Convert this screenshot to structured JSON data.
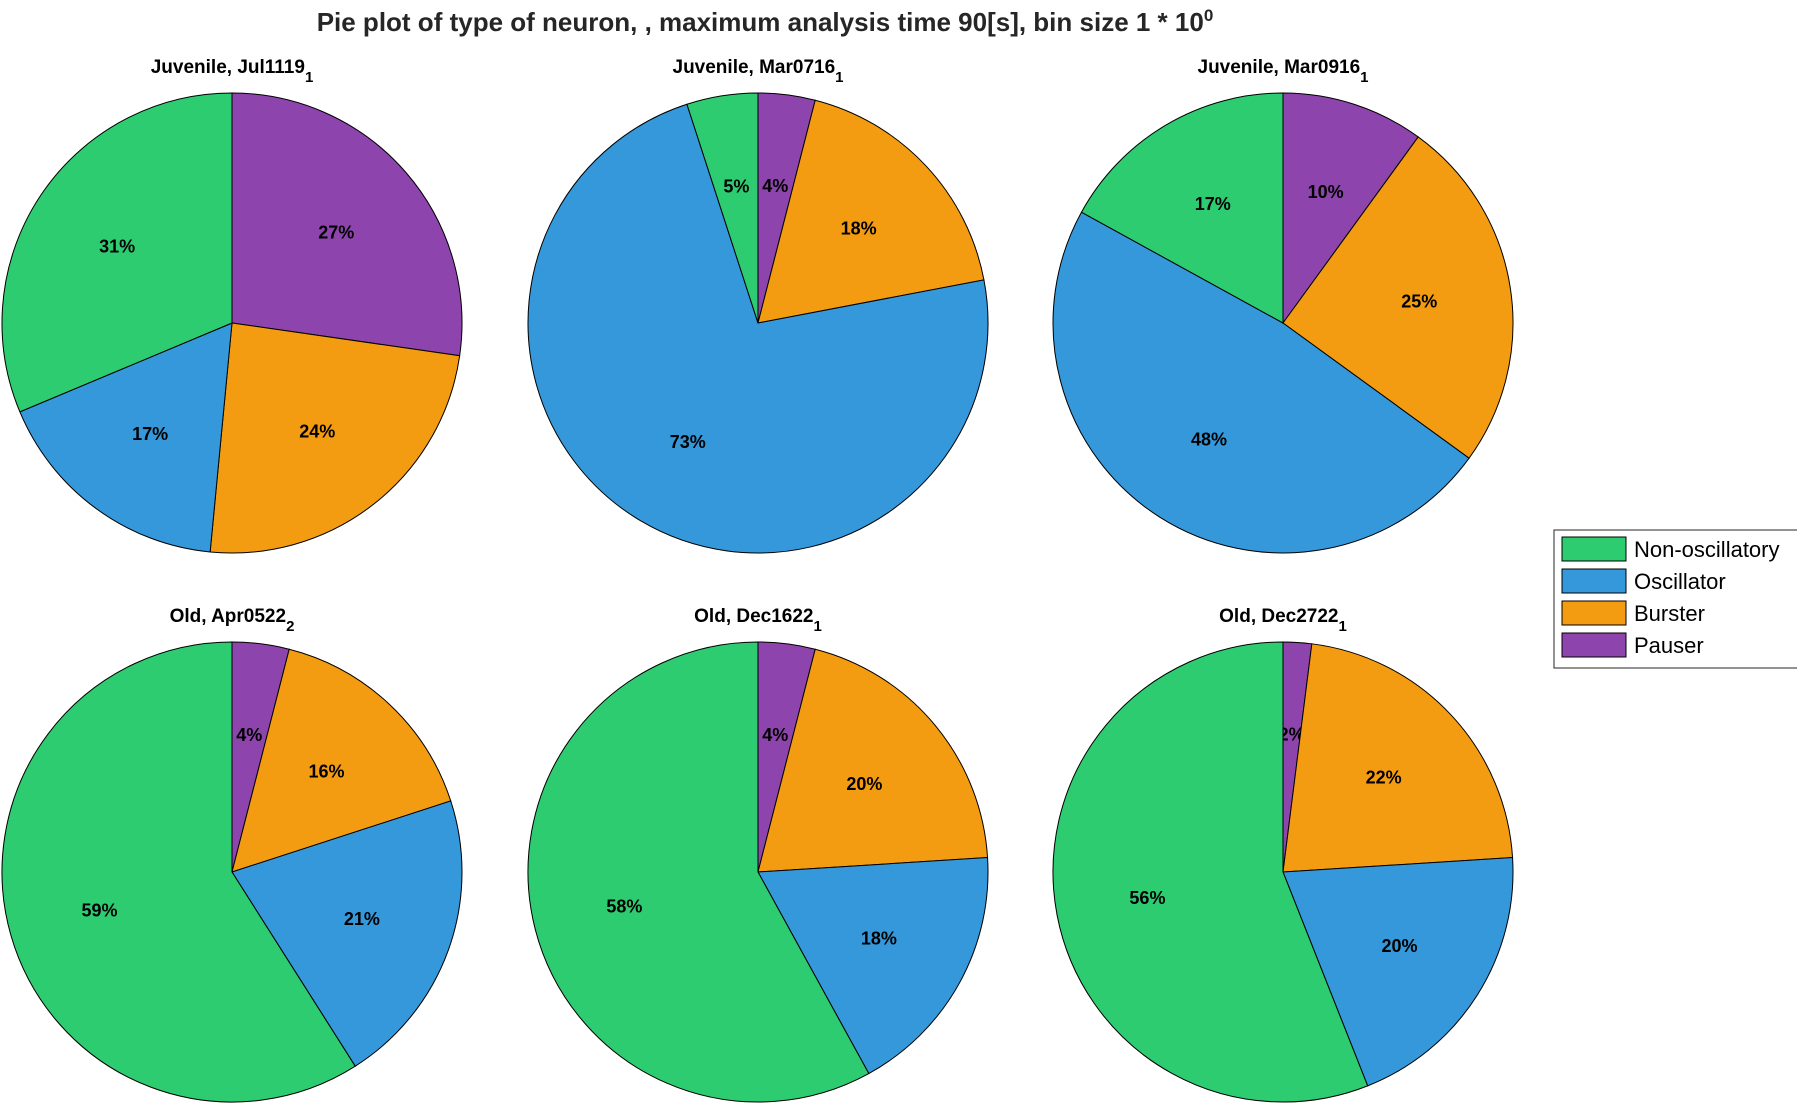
{
  "chart_data": {
    "type": "pie",
    "title": "Pie plot of type of neuron, , maximum analysis time 90[s], bin size 1 * 10",
    "title_superscript": "0",
    "categories": [
      "Non-oscillatory",
      "Oscillator",
      "Burster",
      "Pauser"
    ],
    "colors": {
      "Non-oscillatory": "#2ecc71",
      "Oscillator": "#3498db",
      "Burster": "#f39c12",
      "Pauser": "#8e44ad"
    },
    "legend": {
      "placement": "right",
      "entries": [
        "Non-oscillatory",
        "Oscillator",
        "Burster",
        "Pauser"
      ]
    },
    "pies": [
      {
        "title": "Juvenile, Jul1119",
        "subscript": "1",
        "slices": [
          {
            "category": "Pauser",
            "value": 27,
            "label": "27%"
          },
          {
            "category": "Burster",
            "value": 24,
            "label": "24%"
          },
          {
            "category": "Oscillator",
            "value": 17,
            "label": "17%"
          },
          {
            "category": "Non-oscillatory",
            "value": 31,
            "label": "31%"
          }
        ]
      },
      {
        "title": "Juvenile, Mar0716",
        "subscript": "1",
        "slices": [
          {
            "category": "Pauser",
            "value": 4,
            "label": "4%"
          },
          {
            "category": "Burster",
            "value": 18,
            "label": "18%"
          },
          {
            "category": "Oscillator",
            "value": 73,
            "label": "73%"
          },
          {
            "category": "Non-oscillatory",
            "value": 5,
            "label": "5%"
          }
        ]
      },
      {
        "title": "Juvenile, Mar0916",
        "subscript": "1",
        "slices": [
          {
            "category": "Pauser",
            "value": 10,
            "label": "10%"
          },
          {
            "category": "Burster",
            "value": 25,
            "label": "25%"
          },
          {
            "category": "Oscillator",
            "value": 48,
            "label": "48%"
          },
          {
            "category": "Non-oscillatory",
            "value": 17,
            "label": "17%"
          }
        ]
      },
      {
        "title": "Old, Apr0522",
        "subscript": "2",
        "slices": [
          {
            "category": "Pauser",
            "value": 4,
            "label": "4%"
          },
          {
            "category": "Burster",
            "value": 16,
            "label": "16%"
          },
          {
            "category": "Oscillator",
            "value": 21,
            "label": "21%"
          },
          {
            "category": "Non-oscillatory",
            "value": 59,
            "label": "59%"
          }
        ]
      },
      {
        "title": "Old, Dec1622",
        "subscript": "1",
        "slices": [
          {
            "category": "Pauser",
            "value": 4,
            "label": "4%"
          },
          {
            "category": "Burster",
            "value": 20,
            "label": "20%"
          },
          {
            "category": "Oscillator",
            "value": 18,
            "label": "18%"
          },
          {
            "category": "Non-oscillatory",
            "value": 58,
            "label": "58%"
          }
        ]
      },
      {
        "title": "Old, Dec2722",
        "subscript": "1",
        "slices": [
          {
            "category": "Pauser",
            "value": 2,
            "label": "2%"
          },
          {
            "category": "Burster",
            "value": 22,
            "label": "22%"
          },
          {
            "category": "Oscillator",
            "value": 20,
            "label": "20%"
          },
          {
            "category": "Non-oscillatory",
            "value": 56,
            "label": "56%"
          }
        ]
      }
    ]
  }
}
